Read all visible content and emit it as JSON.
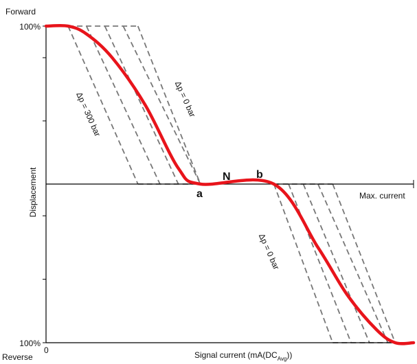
{
  "chart_data": {
    "type": "line",
    "title": "",
    "labels": {
      "y_top": "Forward",
      "y_bottom": "Reverse",
      "ylabel": "Displacement",
      "y_tick_top": "100%",
      "y_tick_bottom": "100%",
      "x_origin": "0",
      "xlabel_main": "Signal current (mA(DC",
      "xlabel_sub": "Avg",
      "xlabel_end": "))",
      "x_max": "Max. current"
    },
    "annotations": {
      "forward_dp0": "Δp = 0 bar",
      "forward_dp300": "Δp = 300 bar",
      "reverse_dp0": "Δp = 0 bar",
      "point_a": "a",
      "point_n": "N",
      "point_b": "b"
    },
    "colors": {
      "curve": "#e8141b",
      "dashed": "#777777",
      "axis": "#000000"
    },
    "ylim": [
      -100,
      100
    ],
    "xlim": [
      0,
      1
    ],
    "series": [
      {
        "name": "",
        "x": [
          0.0,
          0.06,
          0.11,
          0.18,
          0.27,
          0.36,
          0.42,
          0.62,
          0.74,
          0.82,
          0.9,
          0.95,
          1.0
        ],
        "y": [
          100,
          100,
          95,
          80,
          50,
          10,
          0,
          0,
          -40,
          -70,
          -92,
          -100,
          -100
        ]
      }
    ],
    "forward_dashed": [
      {
        "x": [
          0.06,
          0.25
        ],
        "y": [
          100,
          0
        ]
      },
      {
        "x": [
          0.11,
          0.31
        ],
        "y": [
          100,
          0
        ]
      },
      {
        "x": [
          0.16,
          0.36
        ],
        "y": [
          100,
          0
        ]
      },
      {
        "x": [
          0.21,
          0.42
        ],
        "y": [
          100,
          0
        ]
      },
      {
        "x": [
          0.25,
          0.42
        ],
        "y": [
          100,
          0
        ]
      }
    ],
    "reverse_dashed": [
      {
        "x": [
          0.62,
          0.78
        ],
        "y": [
          0,
          -100
        ]
      },
      {
        "x": [
          0.66,
          0.83
        ],
        "y": [
          0,
          -100
        ]
      },
      {
        "x": [
          0.7,
          0.88
        ],
        "y": [
          0,
          -100
        ]
      },
      {
        "x": [
          0.74,
          0.93
        ],
        "y": [
          0,
          -100
        ]
      },
      {
        "x": [
          0.78,
          0.95
        ],
        "y": [
          0,
          -100
        ]
      }
    ],
    "points": [
      {
        "id": "a",
        "x": 0.42,
        "y": 0
      },
      {
        "id": "N",
        "x": 0.52,
        "y": 0
      },
      {
        "id": "b",
        "x": 0.62,
        "y": 0
      }
    ],
    "y_minor_ticks": [
      80,
      40,
      -20,
      -60
    ]
  }
}
